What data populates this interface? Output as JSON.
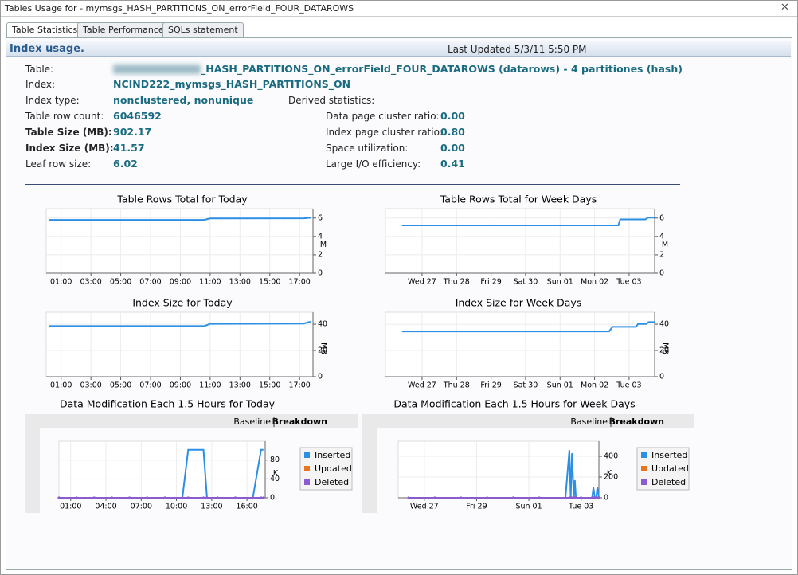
{
  "window": {
    "title": "Tables Usage for - mymsgs_HASH_PARTITIONS_ON_errorField_FOUR_DATAROWS"
  },
  "tabs": [
    "Table Statistics",
    "Table Performance",
    "SQLs statement"
  ],
  "header": {
    "title": "Index usage.",
    "last_updated": "Last Updated 5/3/11 5:50 PM"
  },
  "table_info": {
    "rows": [
      [
        "Table:",
        "_HASH_PARTITIONS_ON_errorField_FOUR_DATAROWS (datarows) - 4 partitiones (hash)"
      ],
      [
        "Index:",
        "NCIND222_mymsgs_HASH_PARTITIONS_ON"
      ],
      [
        "Index type:",
        "nonclustered, nonunique"
      ],
      [
        "Table row count:",
        "6046592"
      ],
      [
        "Table Size (MB):",
        "902.17"
      ],
      [
        "Index Size (MB):",
        "41.57"
      ],
      [
        "Leaf row size:",
        "6.02"
      ]
    ]
  },
  "derived": {
    "title": "Derived statistics:",
    "rows": [
      [
        "Data page cluster ratio:",
        "0.00"
      ],
      [
        "Index page cluster ratio:",
        "0.80"
      ],
      [
        "Space utilization:",
        "0.00"
      ],
      [
        "Large I/O efficiency:",
        "0.41"
      ]
    ]
  },
  "chart_data": [
    {
      "type": "line",
      "title": "Table Rows Total for Today",
      "y_label": "M",
      "color": "#2b8fe6",
      "x": [
        0.2,
        10.6,
        11.0,
        17.3,
        17.8
      ],
      "values": [
        5.8,
        5.8,
        5.95,
        5.97,
        6.05
      ],
      "xlim": [
        0,
        17.9
      ],
      "ylim": [
        0,
        6.5
      ],
      "yticks": [
        0,
        2,
        4,
        6
      ],
      "xticks": [
        {
          "value": 1,
          "label": "01:00"
        },
        {
          "value": 3,
          "label": "03:00"
        },
        {
          "value": 5,
          "label": "05:00"
        },
        {
          "value": 7,
          "label": "07:00"
        },
        {
          "value": 9,
          "label": "09:00"
        },
        {
          "value": 11,
          "label": "11:00"
        },
        {
          "value": 13,
          "label": "13:00"
        },
        {
          "value": 15,
          "label": "15:00"
        },
        {
          "value": 17,
          "label": "17:00"
        }
      ]
    },
    {
      "type": "line",
      "title": "Table Rows Total for Week Days",
      "y_label": "M",
      "color": "#2b8fe6",
      "x": [
        -0.58,
        5.69,
        5.74,
        6.47,
        6.55,
        6.78
      ],
      "values": [
        5.2,
        5.2,
        5.85,
        5.85,
        6.05,
        6.05
      ],
      "xlim": [
        -1.06,
        6.74
      ],
      "ylim": [
        0,
        6.5
      ],
      "yticks": [
        0,
        2,
        4,
        6
      ],
      "xticks": [
        {
          "value": 0,
          "label": "Wed 27"
        },
        {
          "value": 1,
          "label": "Thu 28"
        },
        {
          "value": 2,
          "label": "Fri 29"
        },
        {
          "value": 3,
          "label": "Sat 30"
        },
        {
          "value": 4,
          "label": "Sun 01"
        },
        {
          "value": 5,
          "label": "Mon 02"
        },
        {
          "value": 6,
          "label": "Tue 03"
        }
      ]
    },
    {
      "type": "line",
      "title": "Index Size for Today",
      "y_label": "MB",
      "color": "#2b8fe6",
      "x": [
        0.2,
        10.6,
        11.0,
        17.3,
        17.6,
        17.8
      ],
      "values": [
        38.6,
        38.6,
        40.3,
        40.5,
        41.6,
        41.6
      ],
      "xlim": [
        0,
        17.9
      ],
      "ylim": [
        0,
        45.5
      ],
      "yticks": [
        0,
        20,
        40
      ],
      "xticks": [
        {
          "value": 1,
          "label": "01:00"
        },
        {
          "value": 3,
          "label": "03:00"
        },
        {
          "value": 5,
          "label": "05:00"
        },
        {
          "value": 7,
          "label": "07:00"
        },
        {
          "value": 9,
          "label": "09:00"
        },
        {
          "value": 11,
          "label": "11:00"
        },
        {
          "value": 13,
          "label": "13:00"
        },
        {
          "value": 15,
          "label": "15:00"
        },
        {
          "value": 17,
          "label": "17:00"
        }
      ]
    },
    {
      "type": "line",
      "title": "Index Size for Week Days",
      "y_label": "MB",
      "color": "#2b8fe6",
      "x": [
        -0.58,
        5.42,
        5.52,
        6.2,
        6.26,
        6.5,
        6.56,
        6.74
      ],
      "values": [
        34.5,
        34.5,
        38,
        38,
        40.2,
        40.2,
        41.6,
        41.6
      ],
      "xlim": [
        -1.06,
        6.74
      ],
      "ylim": [
        0,
        45.5
      ],
      "yticks": [
        0,
        20,
        40
      ],
      "xticks": [
        {
          "value": 0,
          "label": "Wed 27"
        },
        {
          "value": 1,
          "label": "Thu 28"
        },
        {
          "value": 2,
          "label": "Fri 29"
        },
        {
          "value": 3,
          "label": "Sat 30"
        },
        {
          "value": 4,
          "label": "Sun 01"
        },
        {
          "value": 5,
          "label": "Mon 02"
        },
        {
          "value": 6,
          "label": "Tue 03"
        }
      ]
    },
    {
      "type": "line",
      "title": "Data Modification Each 1.5 Hours for Today",
      "y_label": "K",
      "view_links": [
        "Baseline",
        "Breakdown"
      ],
      "x": [
        0,
        1.5,
        3,
        4.5,
        6,
        7.5,
        9,
        10.5,
        11.0,
        12.3,
        12.6,
        13.5,
        15,
        16.5,
        17.2,
        17.4
      ],
      "series": [
        {
          "name": "Inserted",
          "color": "#2b8fe6",
          "values": [
            0,
            0,
            0,
            0,
            0,
            0,
            0,
            0,
            102,
            102,
            0,
            0,
            0,
            0,
            102,
            102
          ]
        },
        {
          "name": "Updated",
          "color": "#e8761f",
          "values": [
            0,
            0,
            0,
            0,
            0,
            0,
            0,
            0,
            0,
            0,
            0,
            0,
            0,
            0,
            0,
            0
          ]
        },
        {
          "name": "Deleted",
          "color": "#8a5bd1",
          "values": [
            0,
            0,
            0,
            0,
            0,
            0,
            0,
            0,
            0,
            0,
            0,
            0,
            0,
            0,
            0,
            0
          ]
        }
      ],
      "xlim": [
        0,
        17.55
      ],
      "ylim": [
        0,
        110
      ],
      "yticks": [
        0,
        40,
        80
      ],
      "xticks": [
        {
          "value": 1,
          "label": "01:00"
        },
        {
          "value": 4,
          "label": "04:00"
        },
        {
          "value": 7,
          "label": "07:00"
        },
        {
          "value": 10,
          "label": "10:00"
        },
        {
          "value": 13,
          "label": "13:00"
        },
        {
          "value": 16,
          "label": "16:00"
        }
      ]
    },
    {
      "type": "line",
      "title": "Data Modification Each 1.5 Hours for Week Days",
      "y_label": "K",
      "view_links": [
        "Baseline",
        "Breakdown"
      ],
      "x": [
        -0.6,
        0.4,
        1.4,
        2.4,
        3.4,
        4.4,
        5.4,
        5.55,
        5.6,
        5.65,
        5.72,
        5.76,
        5.8,
        6.0,
        6.42,
        6.47,
        6.52,
        6.58,
        6.62,
        6.68
      ],
      "series": [
        {
          "name": "Inserted",
          "color": "#2b8fe6",
          "values": [
            0,
            0,
            0,
            0,
            0,
            0,
            0,
            460,
            0,
            430,
            0,
            170,
            0,
            0,
            0,
            100,
            0,
            0,
            100,
            0
          ]
        },
        {
          "name": "Updated",
          "color": "#e8761f",
          "values": [
            0,
            0,
            0,
            0,
            0,
            0,
            0,
            0,
            0,
            0,
            0,
            0,
            0,
            0,
            0,
            0,
            0,
            0,
            0,
            0
          ]
        },
        {
          "name": "Deleted",
          "color": "#8a5bd1",
          "values": [
            0,
            0,
            0,
            0,
            0,
            0,
            0,
            0,
            0,
            0,
            0,
            0,
            0,
            0,
            0,
            0,
            0,
            0,
            0,
            0
          ]
        }
      ],
      "xlim": [
        -1.0,
        6.68
      ],
      "ylim": [
        0,
        500
      ],
      "yticks": [
        0,
        200,
        400
      ],
      "xticks": [
        {
          "value": 0,
          "label": "Wed 27"
        },
        {
          "value": 2,
          "label": "Fri 29"
        },
        {
          "value": 4,
          "label": "Sun 01"
        },
        {
          "value": 6,
          "label": "Tue 03"
        }
      ]
    }
  ]
}
